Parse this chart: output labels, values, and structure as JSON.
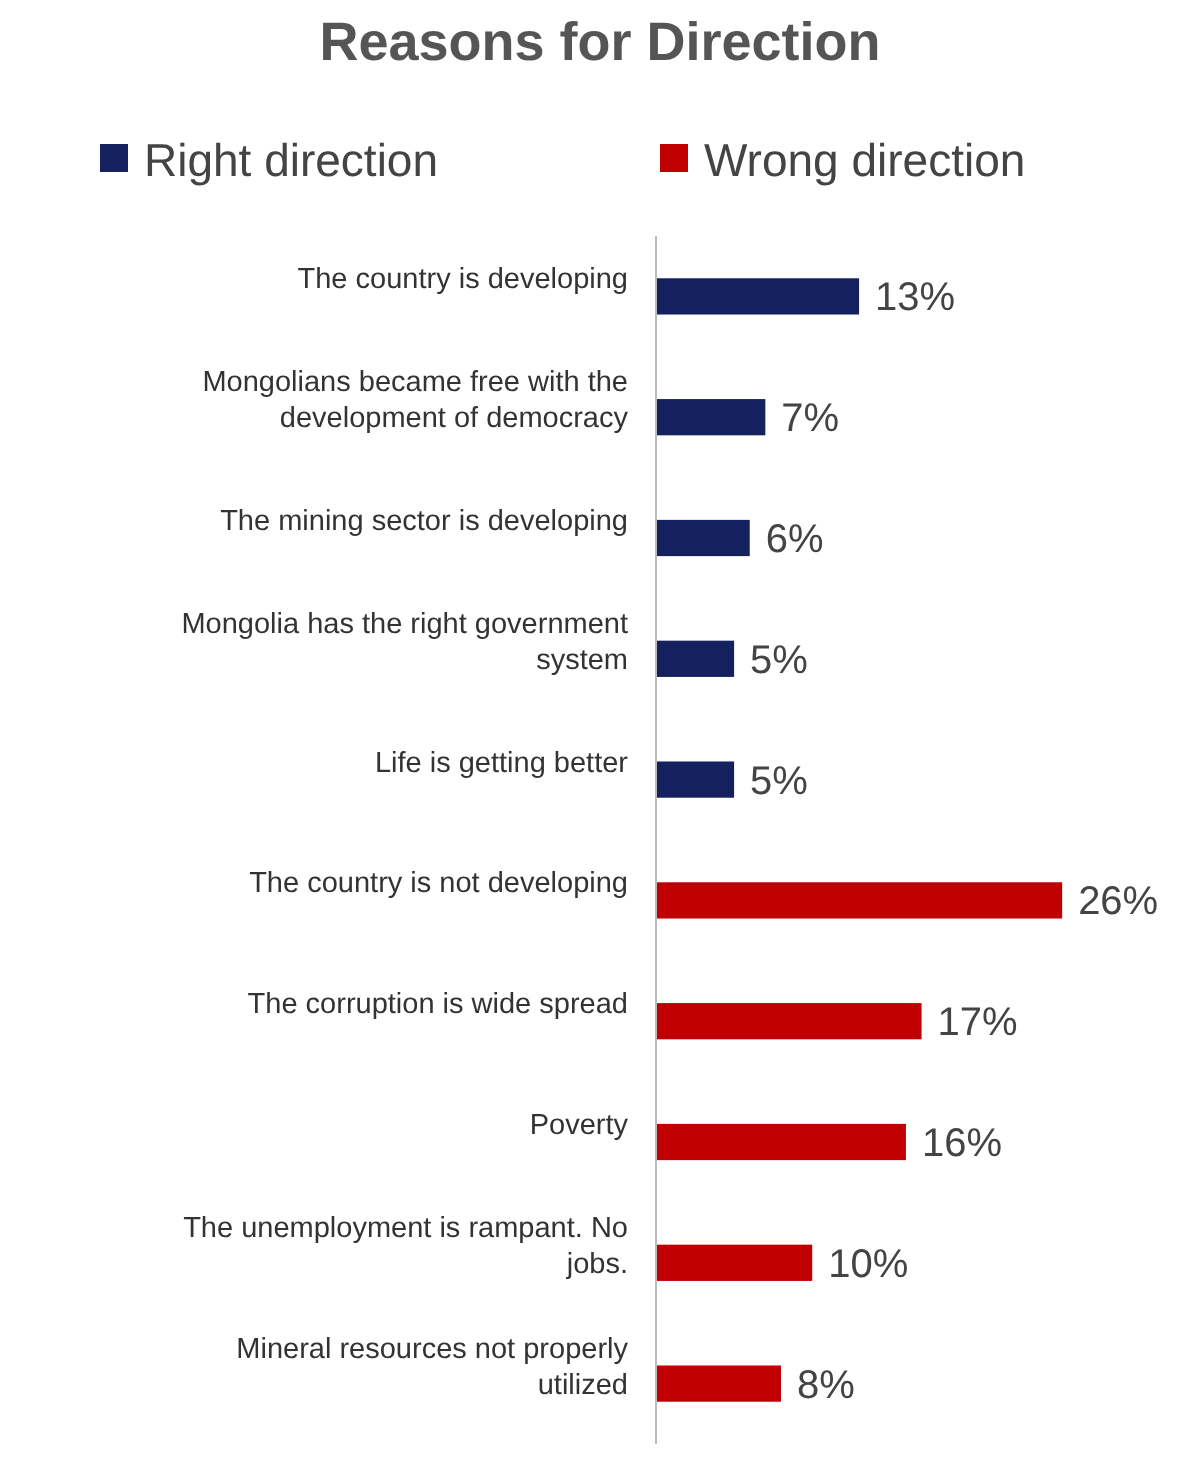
{
  "chart_data": {
    "type": "bar",
    "orientation": "horizontal",
    "title": "Reasons for Direction",
    "legend": "top",
    "categories": [
      "The country is developing",
      "Mongolians became free with the development of democracy",
      "The mining sector is developing",
      "Mongolia has the right government system",
      "Life is getting better",
      "The country is not developing",
      "The corruption is wide spread",
      "Poverty",
      "The unemployment is rampant. No jobs.",
      "Mineral resources not properly utilized"
    ],
    "series": [
      {
        "name": "Right direction",
        "color": "#14215e",
        "values": [
          13,
          7,
          6,
          5,
          5,
          null,
          null,
          null,
          null,
          null
        ],
        "value_labels": [
          "13%",
          "7%",
          "6%",
          "5%",
          "5%",
          null,
          null,
          null,
          null,
          null
        ]
      },
      {
        "name": "Wrong direction",
        "color": "#c00000",
        "values": [
          null,
          null,
          null,
          null,
          null,
          26,
          17,
          16,
          10,
          8
        ],
        "value_labels": [
          null,
          null,
          null,
          null,
          null,
          "26%",
          "17%",
          "16%",
          "10%",
          "8%"
        ]
      }
    ]
  }
}
